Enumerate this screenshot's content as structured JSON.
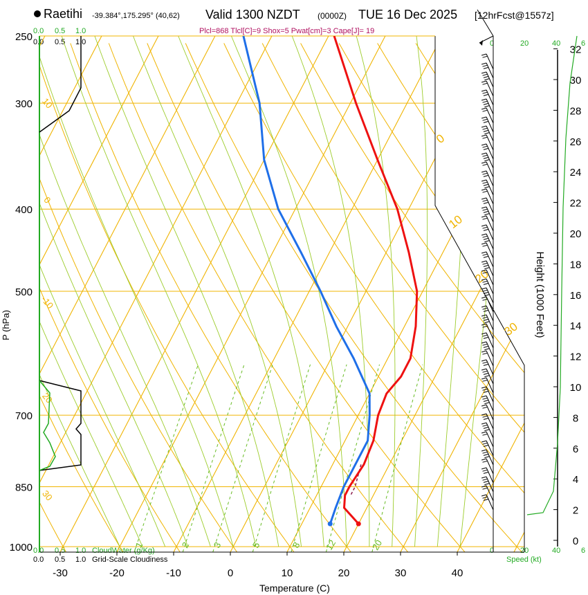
{
  "header": {
    "station": "Raetihi",
    "coords": "-39.384°,175.295° (40,62)",
    "valid": "Valid 1300 NZDT",
    "utc": "(0000Z)",
    "date": "TUE 16 Dec 2025",
    "forecast": "[12hrFcst@1557z]",
    "stats": "Plcl=868 Tlcl[C]=9 Shox=5 Pwat[cm]=3 Cape[J]= 19"
  },
  "chart_data": {
    "type": "line",
    "title": "Skew-T log-P sounding",
    "xlabel": "Temperature (C)",
    "ylabel": "P (hPa)",
    "right_ylabel": "Height (1000 Feet)",
    "temperature_ticks": [
      "-30",
      "-20",
      "-10",
      "0",
      "10",
      "20",
      "30",
      "40"
    ],
    "pressure_ticks": [
      "250",
      "300",
      "400",
      "500",
      "700",
      "850",
      "1000"
    ],
    "height_ticks": [
      "0",
      "2",
      "4",
      "6",
      "8",
      "10",
      "12",
      "14",
      "16",
      "18",
      "20",
      "22",
      "24",
      "26",
      "28",
      "30",
      "32"
    ],
    "isotherm_labels": [
      "0",
      "10",
      "20",
      "30"
    ],
    "dry_adiabat_labels": [
      "10",
      "0",
      "-10",
      "20",
      "30"
    ],
    "mixing_ratio_labels": [
      "1",
      "2",
      "3",
      "5",
      "8",
      "12",
      "20"
    ],
    "temperature_series": [
      {
        "p": 940,
        "t": 20
      },
      {
        "p": 900,
        "t": 16
      },
      {
        "p": 870,
        "t": 15
      },
      {
        "p": 850,
        "t": 15
      },
      {
        "p": 800,
        "t": 15.5
      },
      {
        "p": 750,
        "t": 15
      },
      {
        "p": 700,
        "t": 13.5
      },
      {
        "p": 660,
        "t": 13
      },
      {
        "p": 630,
        "t": 14
      },
      {
        "p": 600,
        "t": 14
      },
      {
        "p": 550,
        "t": 12
      },
      {
        "p": 500,
        "t": 9
      },
      {
        "p": 450,
        "t": 4
      },
      {
        "p": 400,
        "t": -2
      },
      {
        "p": 350,
        "t": -10
      },
      {
        "p": 300,
        "t": -19
      },
      {
        "p": 250,
        "t": -29
      }
    ],
    "dewpoint_series": [
      {
        "p": 940,
        "t": 15
      },
      {
        "p": 900,
        "t": 14.5
      },
      {
        "p": 850,
        "t": 14
      },
      {
        "p": 800,
        "t": 14
      },
      {
        "p": 750,
        "t": 14
      },
      {
        "p": 700,
        "t": 12
      },
      {
        "p": 660,
        "t": 10
      },
      {
        "p": 600,
        "t": 4
      },
      {
        "p": 550,
        "t": -2
      },
      {
        "p": 500,
        "t": -8
      },
      {
        "p": 450,
        "t": -15
      },
      {
        "p": 400,
        "t": -23
      },
      {
        "p": 350,
        "t": -30
      },
      {
        "p": 300,
        "t": -36
      },
      {
        "p": 250,
        "t": -45
      }
    ],
    "parcel_series": [
      {
        "p": 868,
        "t": 16
      },
      {
        "p": 850,
        "t": 16
      },
      {
        "p": 800,
        "t": 15
      }
    ],
    "surface_temperature": 20,
    "surface_dewpoint": 15,
    "surface_pressure": 940
  },
  "left_panel": {
    "top_scale_green": [
      "0.0",
      "0.5",
      "1.0"
    ],
    "top_scale_black": [
      "0.0",
      "0.5",
      "1.0"
    ],
    "bottom_scale_green": [
      "0.0",
      "0.5",
      "1.0"
    ],
    "bottom_scale_black": [
      "0.0",
      "0.5",
      "1.0"
    ],
    "cloudwater_label": "CloudWater (g/Kg)",
    "cloudiness_label": "Grid-Scale Cloudiness"
  },
  "wind_panel": {
    "top_scale": [
      "0",
      "20",
      "40",
      "6"
    ],
    "bottom_scale": [
      "0",
      "20",
      "40",
      "6"
    ],
    "speed_label": "Speed (kt)"
  },
  "colors": {
    "temperature": "#ee1111",
    "dewpoint": "#1f6fe8",
    "isotherm": "#f0b400",
    "dry_adiabat": "#f0b400",
    "moist_adiabat": "#9ccc2a",
    "mixing_ratio": "#66bb22",
    "green_text": "#22aa22",
    "stats_text": "#b01060"
  }
}
